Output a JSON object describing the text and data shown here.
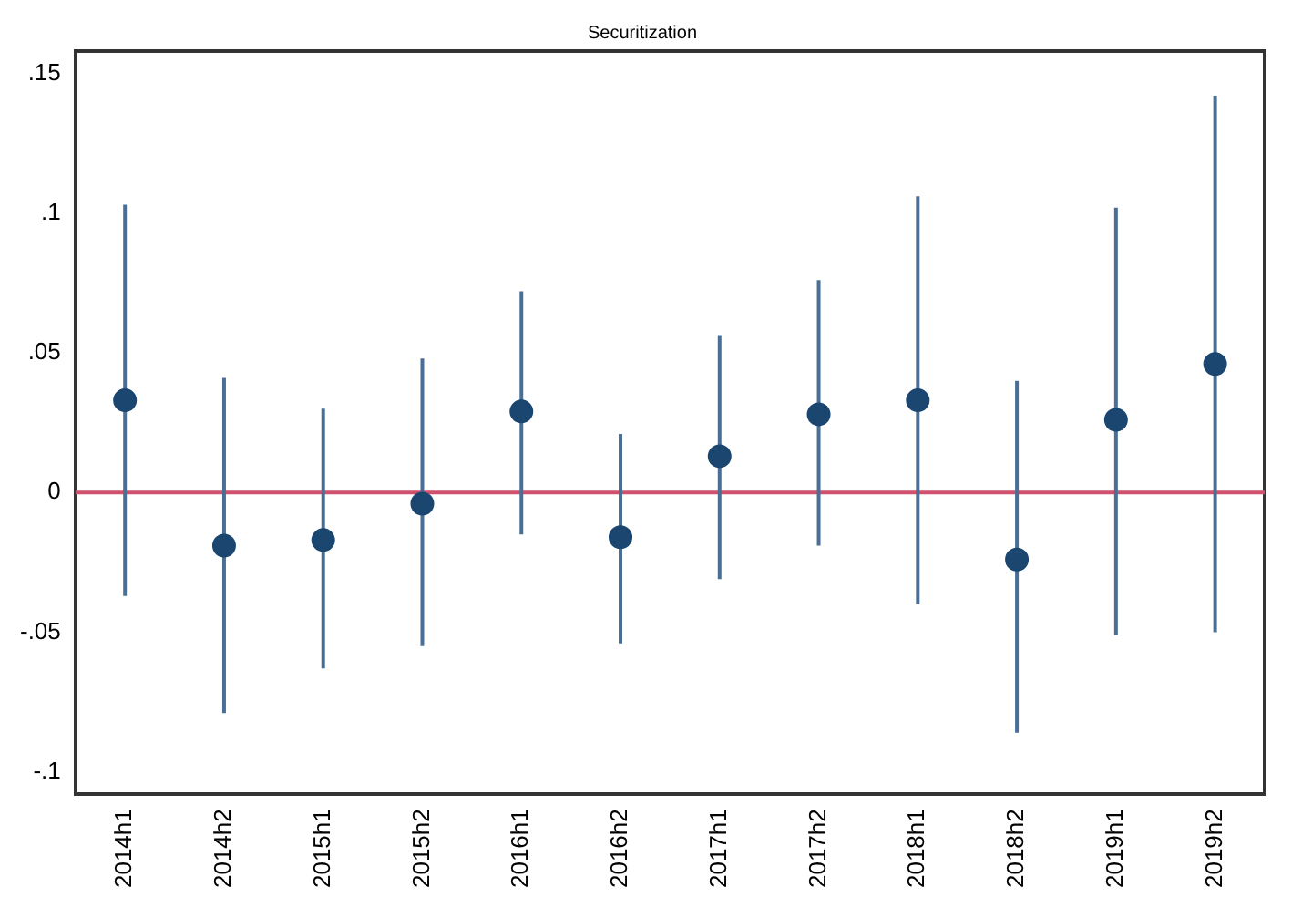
{
  "chart_data": {
    "type": "scatter",
    "title": "Securitization",
    "categories": [
      "2014h1",
      "2014h2",
      "2015h1",
      "2015h2",
      "2016h1",
      "2016h2",
      "2017h1",
      "2017h2",
      "2018h1",
      "2018h2",
      "2019h1",
      "2019h2"
    ],
    "series": [
      {
        "color": "#1a4670",
        "values": [
          0.033,
          -0.019,
          -0.017,
          -0.004,
          0.029,
          -0.016,
          0.013,
          0.028,
          0.033,
          -0.024,
          0.026,
          0.046
        ],
        "errors": [
          [
            -0.037,
            0.103
          ],
          [
            -0.079,
            0.041
          ],
          [
            -0.063,
            0.03
          ],
          [
            -0.055,
            0.048
          ],
          [
            -0.015,
            0.072
          ],
          [
            -0.054,
            0.021
          ],
          [
            -0.031,
            0.056
          ],
          [
            -0.019,
            0.076
          ],
          [
            -0.04,
            0.106
          ],
          [
            -0.086,
            0.04
          ],
          [
            -0.051,
            0.102
          ],
          [
            -0.05,
            0.142
          ]
        ]
      }
    ],
    "ylim": [
      -0.108,
      0.158
    ],
    "yticks": [
      {
        "value": -0.1,
        "label": "-.1"
      },
      {
        "value": -0.05,
        "label": "-.05"
      },
      {
        "value": 0,
        "label": "0"
      },
      {
        "value": 0.05,
        "label": ".05"
      },
      {
        "value": 0.1,
        "label": ".1"
      },
      {
        "value": 0.15,
        "label": ".15"
      }
    ],
    "ref_lines": [
      {
        "axis": "y",
        "value": 0,
        "color": "#d0506e"
      }
    ],
    "grid": false,
    "legend": false,
    "marker": "circle"
  }
}
